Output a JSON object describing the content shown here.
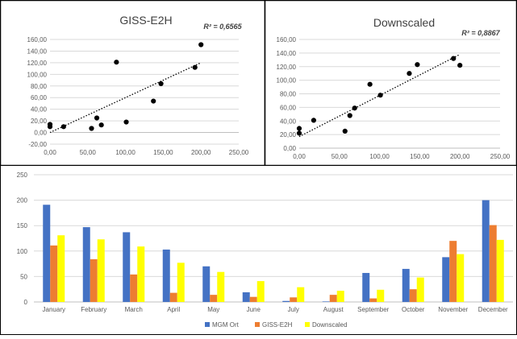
{
  "chart_data": [
    {
      "type": "scatter",
      "title": "GISS-E2H",
      "annotation": "R² = 0,6565",
      "xlim": [
        0,
        250
      ],
      "ylim": [
        -20,
        160
      ],
      "xticks": [
        "0,00",
        "50,00",
        "100,00",
        "150,00",
        "200,00",
        "250,00"
      ],
      "yticks": [
        "-20,00",
        "0,00",
        "20,00",
        "40,00",
        "60,00",
        "80,00",
        "100,00",
        "120,00",
        "140,00",
        "160,00"
      ],
      "points": [
        [
          0,
          10
        ],
        [
          0,
          14
        ],
        [
          18,
          10
        ],
        [
          55,
          7
        ],
        [
          62,
          25
        ],
        [
          68,
          13
        ],
        [
          88,
          121
        ],
        [
          101,
          18
        ],
        [
          137,
          54
        ],
        [
          147,
          84
        ],
        [
          192,
          112
        ],
        [
          200,
          151
        ]
      ],
      "trendline": {
        "style": "dotted",
        "from": [
          0,
          0
        ],
        "to": [
          200,
          120
        ]
      }
    },
    {
      "type": "scatter",
      "title": "Downscaled",
      "annotation": "R² = 0,8867",
      "xlim": [
        0,
        250
      ],
      "ylim": [
        0,
        160
      ],
      "xticks": [
        "0,00",
        "50,00",
        "100,00",
        "150,00",
        "200,00",
        "250,00"
      ],
      "yticks": [
        "0,00",
        "20,00",
        "40,00",
        "60,00",
        "80,00",
        "100,00",
        "120,00",
        "140,00",
        "160,00"
      ],
      "points": [
        [
          0,
          22
        ],
        [
          0,
          29
        ],
        [
          18,
          41
        ],
        [
          57,
          25
        ],
        [
          63,
          48
        ],
        [
          69,
          59
        ],
        [
          88,
          94
        ],
        [
          101,
          78
        ],
        [
          137,
          110
        ],
        [
          147,
          123
        ],
        [
          192,
          132
        ],
        [
          200,
          122
        ]
      ],
      "trendline": {
        "style": "dotted",
        "from": [
          0,
          17
        ],
        "to": [
          200,
          138
        ]
      }
    },
    {
      "type": "bar",
      "categories": [
        "January",
        "February",
        "March",
        "April",
        "May",
        "June",
        "July",
        "August",
        "September",
        "October",
        "November",
        "December"
      ],
      "ylim": [
        0,
        250
      ],
      "yticks": [
        "0",
        "50",
        "100",
        "150",
        "200",
        "250"
      ],
      "series": [
        {
          "name": "MGM Ort",
          "color": "#4472C4",
          "values": [
            191,
            147,
            137,
            103,
            70,
            19,
            2,
            1,
            57,
            65,
            88,
            200
          ]
        },
        {
          "name": "GISS-E2H",
          "color": "#ED7D31",
          "values": [
            111,
            84,
            54,
            18,
            14,
            10,
            9,
            14,
            7,
            25,
            120,
            151
          ]
        },
        {
          "name": "Downscaled",
          "color": "#FFFF00",
          "values": [
            131,
            123,
            109,
            77,
            59,
            41,
            29,
            22,
            24,
            48,
            94,
            122
          ]
        }
      ],
      "legend_position": "bottom",
      "grid": true
    }
  ]
}
